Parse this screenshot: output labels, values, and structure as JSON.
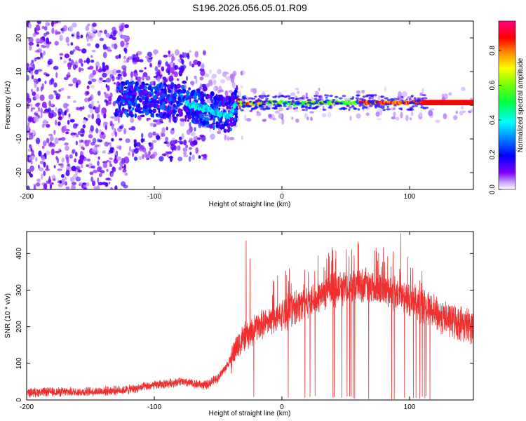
{
  "figure_title": "S196.2026.056.05.01.R09",
  "colors": {
    "snr_line": "#f03030",
    "colormap": [
      "#ffffff",
      "#8000ff",
      "#0000ff",
      "#00ffff",
      "#00ff00",
      "#ffff00",
      "#ff0000",
      "#ff0080"
    ]
  },
  "chart_data": [
    {
      "type": "heatmap",
      "title": "S196.2026.056.05.01.R09",
      "xlabel": "Height of straight line (km)",
      "ylabel": "Frequency (Hz)",
      "xlim": [
        -200,
        150
      ],
      "ylim": [
        -25,
        25
      ],
      "x_ticks": [
        -200,
        -100,
        0,
        100
      ],
      "x_tick_labels": [
        "-200",
        "-100",
        "0",
        "100"
      ],
      "y_ticks": [
        -20,
        -10,
        0,
        10,
        20
      ],
      "y_tick_labels": [
        "-20",
        "-10",
        "0",
        "10",
        "20"
      ],
      "colorbar": {
        "label": "Normalized spectral amplitude",
        "range": [
          0,
          0.97
        ],
        "ticks": [
          0.0,
          0.2,
          0.4,
          0.6,
          0.8
        ],
        "tick_labels": [
          "0.0",
          "0.2",
          "0.4",
          "0.6",
          "0.8"
        ]
      },
      "ridge": {
        "description": "dominant spectral line",
        "x": [
          -120,
          -100,
          -80,
          -70,
          -60,
          -50,
          -45,
          -40,
          -35,
          -30,
          -20,
          -10,
          0,
          10,
          30,
          50,
          70,
          90,
          110,
          150
        ],
        "frequency": [
          2,
          1.5,
          1,
          0,
          -1,
          -2,
          -3,
          -2.5,
          1,
          0.5,
          0.5,
          0.8,
          0.8,
          0.5,
          0.8,
          0.8,
          0.8,
          0.8,
          0.8,
          0.8
        ]
      }
    },
    {
      "type": "line",
      "xlabel": "Height of straight line (km)",
      "ylabel": "SNR (10 * v/v)",
      "xlim": [
        -200,
        150
      ],
      "ylim": [
        0,
        460
      ],
      "x_ticks": [
        -200,
        -100,
        0,
        100
      ],
      "x_tick_labels": [
        "-200",
        "-100",
        "0",
        "100"
      ],
      "y_ticks": [
        0,
        100,
        200,
        300,
        400
      ],
      "y_tick_labels": [
        "0",
        "100",
        "200",
        "300",
        "400"
      ],
      "series": [
        {
          "name": "SNR",
          "x": [
            -200,
            -180,
            -160,
            -140,
            -120,
            -100,
            -80,
            -70,
            -60,
            -50,
            -40,
            -35,
            -30,
            -25,
            -20,
            -10,
            0,
            10,
            20,
            30,
            40,
            50,
            60,
            70,
            80,
            90,
            100,
            110,
            120,
            130,
            140,
            150
          ],
          "y": [
            20,
            22,
            22,
            24,
            28,
            40,
            50,
            45,
            40,
            60,
            110,
            150,
            170,
            180,
            200,
            215,
            230,
            255,
            270,
            285,
            300,
            310,
            315,
            310,
            300,
            290,
            275,
            255,
            235,
            220,
            210,
            200
          ],
          "spikes": [
            {
              "x": -28,
              "y": 435
            },
            {
              "x": -25,
              "y": 385
            },
            {
              "x": 93,
              "y": 455
            },
            {
              "x": 75,
              "y": 380
            }
          ],
          "dropouts": [
            -22,
            5,
            18,
            22,
            26,
            40,
            41,
            47,
            51,
            53,
            54,
            56,
            57,
            68,
            86,
            88,
            96,
            103,
            105,
            108,
            110,
            112,
            113,
            116
          ]
        }
      ]
    }
  ]
}
